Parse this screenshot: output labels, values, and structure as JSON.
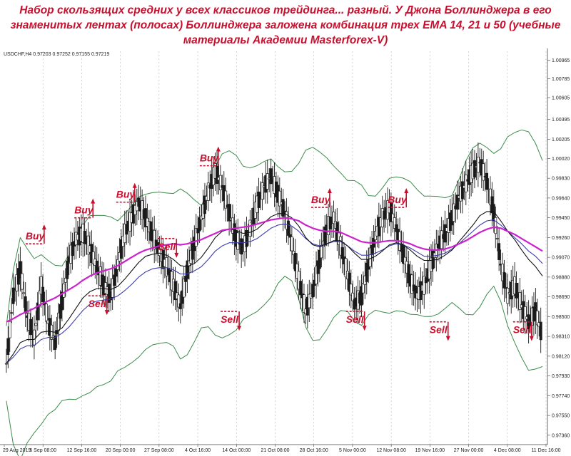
{
  "title": {
    "line1": "Набор скользящих средних у всех классиков трейдинга... разный. У Джона Боллинджера в его",
    "line2": "знаменитых лентах (полосах) Боллинджера заложена комбинация трех EMA 14, 21 и 50 (учебные",
    "line3": "материалы Академии Masterforex-V)"
  },
  "header_info": "USDCHF,H4  0.97203 0.97252 0.97155 0.97219",
  "colors": {
    "candles": "#1a1a1a",
    "bollinger": "#3c8c4a",
    "ema14": "#111111",
    "ema21": "#3b3bb0",
    "ema50": "#cc22cc",
    "signals": "#c8102e"
  },
  "chart_data": {
    "type": "line",
    "symbol": "USDCHF",
    "timeframe": "H4",
    "ohlc": {
      "open": "0.97203",
      "high": "0.97252",
      "low": "0.97155",
      "close": "0.97219"
    },
    "x_ticks": [
      "29 Aug 2019",
      "5 Sep 08:00",
      "12 Sep 16:00",
      "20 Sep 00:00",
      "27 Sep 08:00",
      "4 Oct 16:00",
      "14 Oct 00:00",
      "21 Oct 08:00",
      "28 Oct 16:00",
      "5 Nov 00:00",
      "12 Nov 08:00",
      "19 Nov 16:00",
      "27 Nov 00:00",
      "4 Dec 08:00",
      "11 Dec 16:00"
    ],
    "y_ticks": [
      "1.00965",
      "1.00785",
      "1.00605",
      "1.00395",
      "1.00205",
      "1.00020",
      "0.99830",
      "0.99640",
      "0.99450",
      "0.99260",
      "0.99070",
      "0.98880",
      "0.98690",
      "0.98500",
      "0.98310",
      "0.98120",
      "0.97930",
      "0.97740",
      "0.97550",
      "0.97360"
    ],
    "ylim": [
      0.9727,
      1.0105
    ],
    "grid": true,
    "price": [
      0.9805,
      0.987,
      0.9895,
      0.985,
      0.983,
      0.988,
      0.9845,
      0.9825,
      0.9865,
      0.9905,
      0.9925,
      0.993,
      0.9915,
      0.9898,
      0.988,
      0.987,
      0.99,
      0.993,
      0.9945,
      0.996,
      0.9945,
      0.9928,
      0.9912,
      0.9898,
      0.988,
      0.986,
      0.9895,
      0.992,
      0.9945,
      0.997,
      0.999,
      0.9975,
      0.995,
      0.9925,
      0.9915,
      0.9935,
      0.9958,
      0.9975,
      0.9985,
      0.9968,
      0.995,
      0.992,
      0.9885,
      0.9855,
      0.9875,
      0.9905,
      0.9935,
      0.9945,
      0.9918,
      0.989,
      0.9862,
      0.987,
      0.99,
      0.9928,
      0.9945,
      0.9955,
      0.9935,
      0.991,
      0.9885,
      0.987,
      0.988,
      0.99,
      0.9918,
      0.993,
      0.9945,
      0.9965,
      0.9978,
      0.999,
      0.9998,
      0.998,
      0.995,
      0.99,
      0.987,
      0.988,
      0.986,
      0.9845,
      0.9855,
      0.983
    ],
    "ema14": [
      0.9805,
      0.9814,
      0.9825,
      0.9828,
      0.9828,
      0.9835,
      0.9836,
      0.9835,
      0.9839,
      0.9848,
      0.9858,
      0.9868,
      0.9874,
      0.9877,
      0.9877,
      0.9876,
      0.9879,
      0.9886,
      0.9894,
      0.9902,
      0.9908,
      0.991,
      0.9911,
      0.9909,
      0.9905,
      0.9899,
      0.9898,
      0.9901,
      0.9907,
      0.9916,
      0.9926,
      0.9932,
      0.9934,
      0.9933,
      0.993,
      0.9931,
      0.9934,
      0.994,
      0.9946,
      0.9949,
      0.9949,
      0.9945,
      0.9937,
      0.9926,
      0.9919,
      0.9917,
      0.992,
      0.9923,
      0.9923,
      0.9918,
      0.9911,
      0.9905,
      0.9905,
      0.9908,
      0.9913,
      0.9919,
      0.9921,
      0.9919,
      0.9914,
      0.9908,
      0.9904,
      0.9904,
      0.9905,
      0.9909,
      0.9914,
      0.9922,
      0.993,
      0.9938,
      0.9947,
      0.9951,
      0.9951,
      0.9942,
      0.9932,
      0.9924,
      0.9914,
      0.9905,
      0.9898,
      0.9889
    ],
    "ema21": [
      0.9805,
      0.9811,
      0.9819,
      0.9822,
      0.9822,
      0.9828,
      0.983,
      0.983,
      0.9834,
      0.984,
      0.9848,
      0.9856,
      0.9862,
      0.9865,
      0.9866,
      0.9867,
      0.987,
      0.9875,
      0.9881,
      0.9888,
      0.9893,
      0.9896,
      0.9897,
      0.9897,
      0.9895,
      0.9891,
      0.9891,
      0.9894,
      0.9898,
      0.9905,
      0.9913,
      0.9918,
      0.9921,
      0.9921,
      0.9921,
      0.9922,
      0.9925,
      0.993,
      0.9935,
      0.9938,
      0.9939,
      0.9937,
      0.9932,
      0.9925,
      0.992,
      0.9918,
      0.992,
      0.9922,
      0.9922,
      0.9918,
      0.9913,
      0.9909,
      0.9909,
      0.9911,
      0.9914,
      0.9918,
      0.992,
      0.9919,
      0.9916,
      0.9912,
      0.9908,
      0.9908,
      0.9909,
      0.9911,
      0.9915,
      0.992,
      0.9926,
      0.9932,
      0.9938,
      0.9942,
      0.9943,
      0.9938,
      0.9932,
      0.9926,
      0.992,
      0.9913,
      0.9908,
      0.9901
    ],
    "ema50": [
      0.9845,
      0.9848,
      0.9852,
      0.9855,
      0.9858,
      0.9862,
      0.9865,
      0.9868,
      0.9872,
      0.9876,
      0.988,
      0.9885,
      0.9889,
      0.9892,
      0.9894,
      0.9896,
      0.9899,
      0.9903,
      0.9907,
      0.9911,
      0.9914,
      0.9916,
      0.9918,
      0.9919,
      0.992,
      0.9919,
      0.992,
      0.9922,
      0.9924,
      0.9927,
      0.993,
      0.9933,
      0.9934,
      0.9935,
      0.9936,
      0.9937,
      0.9939,
      0.9941,
      0.9943,
      0.9944,
      0.9945,
      0.9944,
      0.9942,
      0.9938,
      0.9935,
      0.9933,
      0.9932,
      0.9932,
      0.9931,
      0.9928,
      0.9925,
      0.9922,
      0.9921,
      0.9921,
      0.9922,
      0.9923,
      0.9923,
      0.9922,
      0.992,
      0.9917,
      0.9915,
      0.9914,
      0.9914,
      0.9915,
      0.9917,
      0.992,
      0.9923,
      0.9927,
      0.9931,
      0.9934,
      0.9936,
      0.9935,
      0.9932,
      0.9929,
      0.9925,
      0.9921,
      0.9917,
      0.9913
    ],
    "signals": [
      {
        "label": "Buy",
        "type": "buy",
        "index": 4,
        "price": 0.992
      },
      {
        "label": "Sell",
        "type": "sell",
        "index": 13,
        "price": 0.987
      },
      {
        "label": "Buy",
        "type": "buy",
        "index": 11,
        "price": 0.9945
      },
      {
        "label": "Buy",
        "type": "buy",
        "index": 17,
        "price": 0.996
      },
      {
        "label": "Sell",
        "type": "sell",
        "index": 23,
        "price": 0.9925
      },
      {
        "label": "Buy",
        "type": "buy",
        "index": 29,
        "price": 0.9995
      },
      {
        "label": "Sell",
        "type": "sell",
        "index": 32,
        "price": 0.9855
      },
      {
        "label": "Buy",
        "type": "buy",
        "index": 45,
        "price": 0.9955
      },
      {
        "label": "Sell",
        "type": "sell",
        "index": 50,
        "price": 0.9855
      },
      {
        "label": "Buy",
        "type": "buy",
        "index": 56,
        "price": 0.9955
      },
      {
        "label": "Sell",
        "type": "sell",
        "index": 62,
        "price": 0.9845
      },
      {
        "label": "Sell",
        "type": "sell",
        "index": 74,
        "price": 0.9845
      }
    ]
  }
}
